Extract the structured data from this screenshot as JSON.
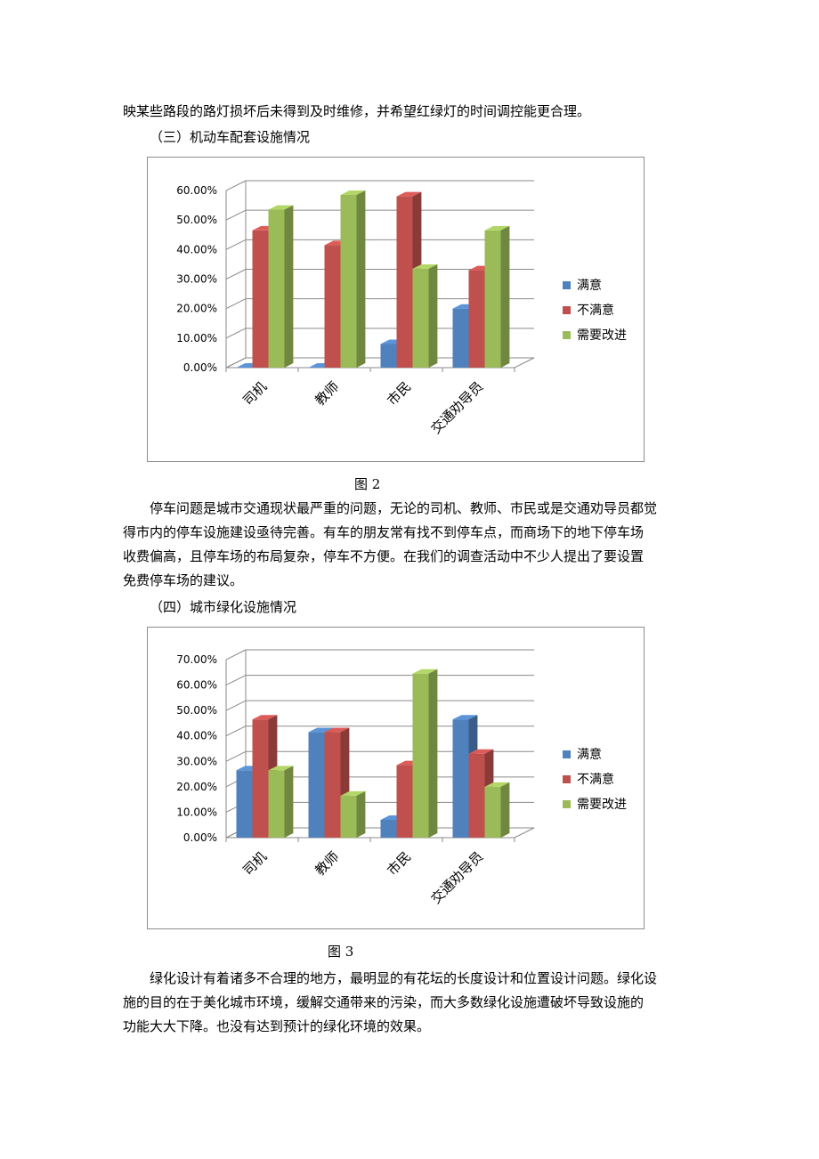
{
  "text": {
    "intro_line": "映某些路段的路灯损坏后未得到及时维修，并希望红绿灯的时间调控能更合理。",
    "section3_heading": "（三）机动车配套设施情况",
    "fig2_caption": "图 2",
    "para2_lines": [
      "停车问题是城市交通现状最严重的问题，无论的司机、教师、市民或是交通劝导员都觉",
      "得市内的停车设施建设亟待完善。有车的朋友常有找不到停车点，而商场下的地下停车场",
      "收费偏高，且停车场的布局复杂，停车不方便。在我们的调查活动中不少人提出了要设置",
      "免费停车场的建议。"
    ],
    "section4_heading": "（四）城市绿化设施情况",
    "fig3_caption": "图 3",
    "para3_lines": [
      "绿化设计有着诸多不合理的地方，最明显的有花坛的长度设计和位置设计问题。绿化设",
      "施的目的在于美化城市环境，缓解交通带来的污染，而大多数绿化设施遭破坏导致设施的",
      "功能大大下降。也没有达到预计的绿化环境的效果。"
    ]
  },
  "colors": {
    "satisfied": "#4f81bd",
    "unsatisfied": "#c0504d",
    "needs_improvement": "#9bbb59"
  },
  "chart_data": [
    {
      "type": "bar",
      "categories": [
        "司机",
        "教师",
        "市民",
        "交通劝导员"
      ],
      "series": [
        {
          "name": "满意",
          "values": [
            0.0,
            0.0,
            8.0,
            20.0
          ]
        },
        {
          "name": "不满意",
          "values": [
            46.5,
            41.5,
            58.0,
            33.0
          ]
        },
        {
          "name": "需要改进",
          "values": [
            53.5,
            58.5,
            33.5,
            46.5
          ]
        }
      ],
      "ylim": [
        0,
        60
      ],
      "yticks": [
        "0.00%",
        "10.00%",
        "20.00%",
        "30.00%",
        "40.00%",
        "50.00%",
        "60.00%"
      ],
      "grid": true,
      "legend": "right"
    },
    {
      "type": "bar",
      "categories": [
        "司机",
        "教师",
        "市民",
        "交通劝导员"
      ],
      "series": [
        {
          "name": "满意",
          "values": [
            26.5,
            41.5,
            7.0,
            46.5
          ]
        },
        {
          "name": "不满意",
          "values": [
            46.5,
            41.5,
            28.5,
            33.0
          ]
        },
        {
          "name": "需要改进",
          "values": [
            26.5,
            16.5,
            64.5,
            20.0
          ]
        }
      ],
      "ylim": [
        0,
        70
      ],
      "yticks": [
        "0.00%",
        "10.00%",
        "20.00%",
        "30.00%",
        "40.00%",
        "50.00%",
        "60.00%",
        "70.00%"
      ],
      "grid": true,
      "legend": "right"
    }
  ]
}
